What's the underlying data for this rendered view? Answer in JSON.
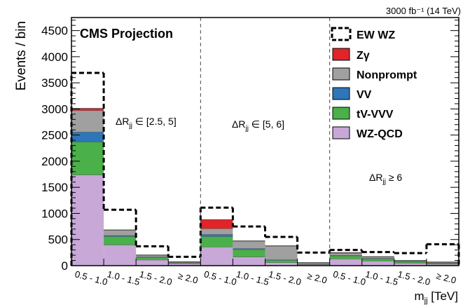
{
  "chart_data": {
    "type": "bar",
    "stacked": true,
    "lumi_text": "3000 fb⁻¹ (14 TeV)",
    "experiment_label": "CMS Projection",
    "ylabel": "Events / bin",
    "xlabel": "mⱼⱼ [TeV]",
    "xlabel_main": "m",
    "xlabel_sub": "jj",
    "xlabel_unit": " [TeV]",
    "ylim": [
      0,
      4750
    ],
    "yticks": [
      0,
      500,
      1000,
      1500,
      2000,
      2500,
      3000,
      3500,
      4000,
      4500
    ],
    "categories": [
      "0.5 - 1.0",
      "1.0 - 1.5",
      "1.5 - 2.0",
      "≥ 2.0",
      "0.5 - 1.0",
      "1.0 - 1.5",
      "1.5 - 2.0",
      "≥ 2.0",
      "0.5 - 1.0",
      "1.0 - 1.5",
      "1.5 - 2.0",
      "≥ 2.0"
    ],
    "regions": [
      {
        "label_main": "ΔR",
        "label_sub": "jj",
        "label_rest": " ∈ [2.5, 5]"
      },
      {
        "label_main": "ΔR",
        "label_sub": "jj",
        "label_rest": " ∈ [5, 6]"
      },
      {
        "label_main": "ΔR",
        "label_sub": "jj",
        "label_rest": " ≥ 6"
      }
    ],
    "series": [
      {
        "name": "WZ-QCD",
        "color": "#c7a8d7",
        "values": [
          1740,
          400,
          110,
          40,
          360,
          170,
          60,
          25,
          130,
          90,
          50,
          30
        ]
      },
      {
        "name": "tV-VVV",
        "color": "#4ab04a",
        "values": [
          630,
          160,
          50,
          15,
          200,
          140,
          45,
          10,
          60,
          45,
          25,
          20
        ]
      },
      {
        "name": "VV",
        "color": "#2e76b8",
        "values": [
          190,
          20,
          10,
          5,
          40,
          20,
          10,
          5,
          10,
          8,
          5,
          5
        ]
      },
      {
        "name": "Nonprompt",
        "color": "#a0a0a0",
        "values": [
          410,
          100,
          30,
          10,
          110,
          140,
          260,
          20,
          40,
          25,
          15,
          10
        ]
      },
      {
        "name": "Zγ",
        "color": "#e0242a",
        "values": [
          40,
          5,
          5,
          5,
          170,
          5,
          5,
          0,
          10,
          5,
          5,
          5
        ]
      }
    ],
    "signal": {
      "name": "EW WZ",
      "values": [
        3690,
        1070,
        370,
        170,
        1110,
        750,
        550,
        250,
        300,
        260,
        240,
        410
      ]
    },
    "legend": [
      "EW WZ",
      "Zγ",
      "Nonprompt",
      "VV",
      "tV-VVV",
      "WZ-QCD"
    ],
    "legend_position": "top-right",
    "grid": false
  }
}
